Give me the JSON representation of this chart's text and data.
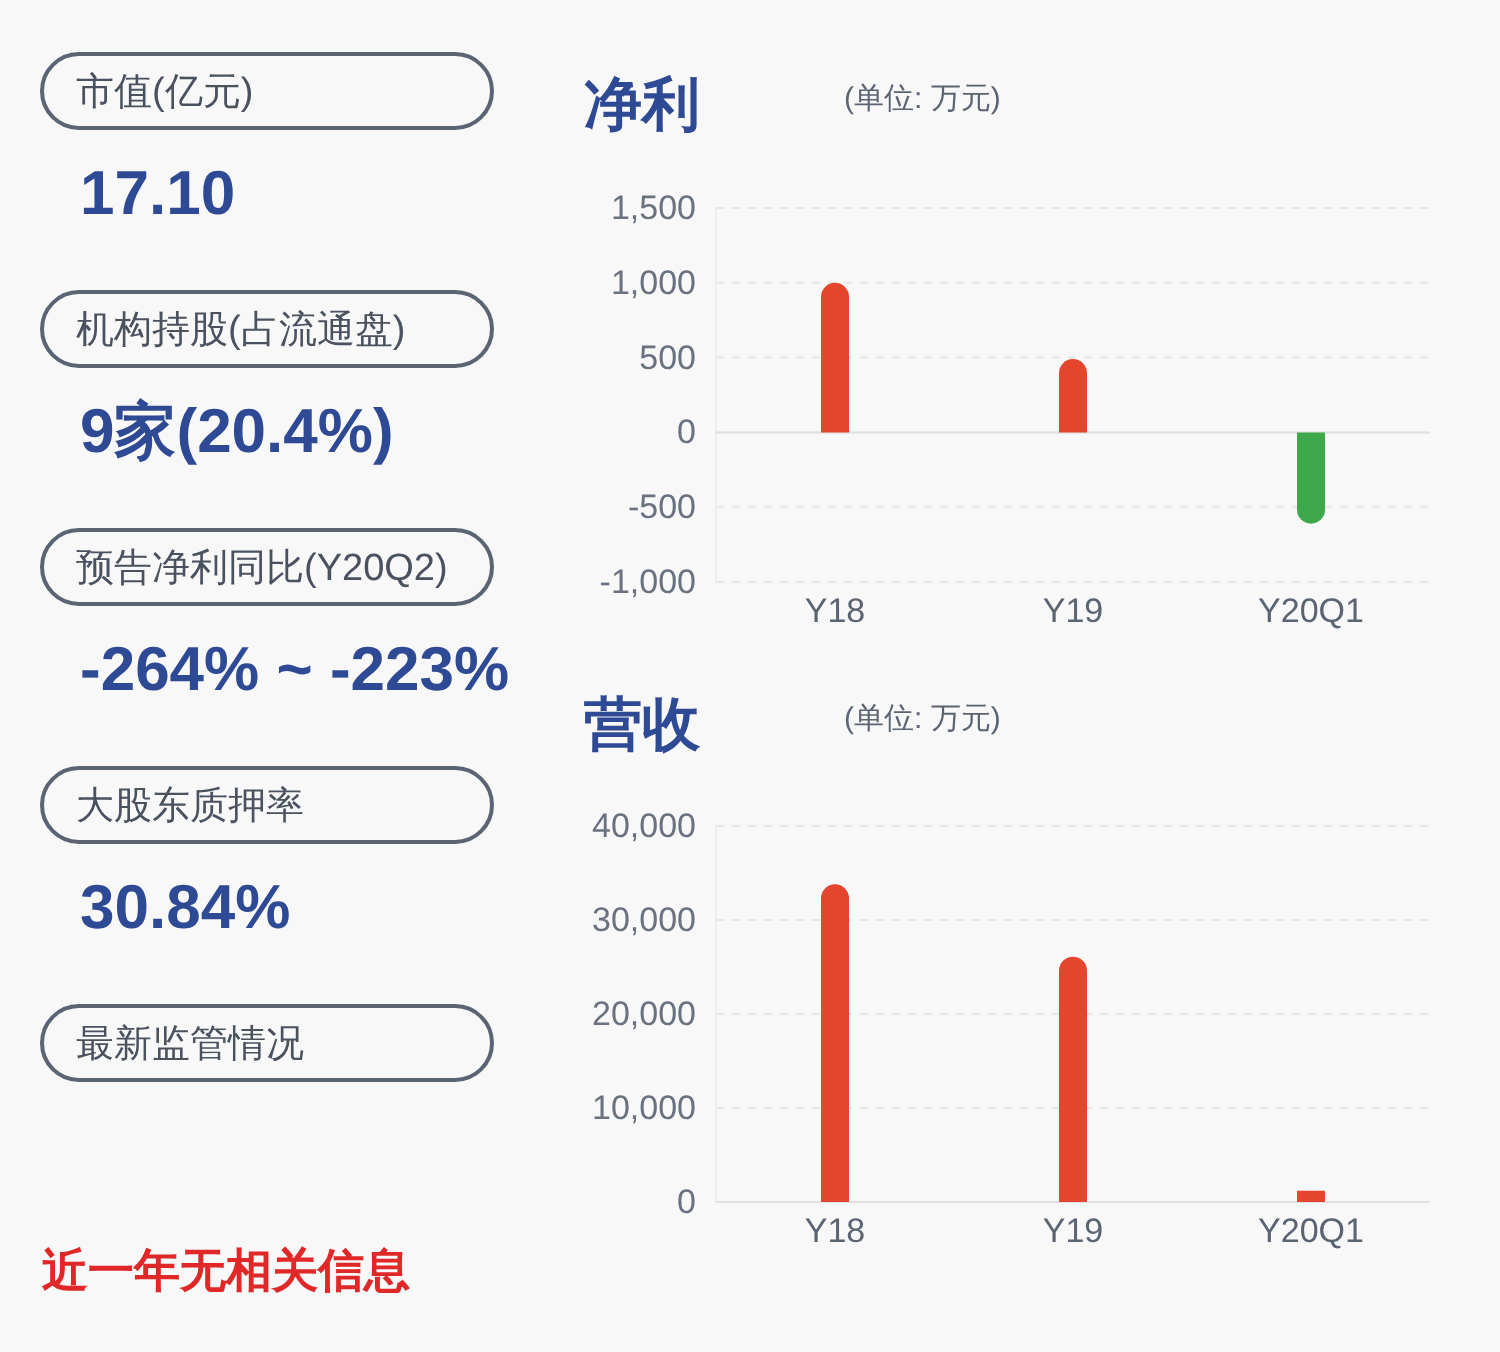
{
  "chart_data": [
    {
      "type": "other",
      "annotations": [
        "市值(亿元)",
        "17.10",
        "机构持股(占流通盘)",
        "9家(20.4%)",
        "预告净利同比(Y20Q2)",
        "-264% ~ -223%",
        "大股东质押率",
        "30.84%",
        "最新监管情况",
        "近一年无相关信息"
      ]
    },
    {
      "type": "bar",
      "title": "净利",
      "subtitle": "(单位: 万元)",
      "categories": [
        "Y18",
        "Y19",
        "Y20Q1"
      ],
      "values": [
        1000,
        490,
        -610
      ],
      "colors": [
        "#e3462c",
        "#e3462c",
        "#3fa84a"
      ],
      "ylim": [
        -1000,
        1500
      ],
      "yticks": [
        {
          "value": -1000,
          "label": "-1,000"
        },
        -500,
        0,
        500,
        {
          "value": 1000,
          "label": "1,000"
        },
        {
          "value": 1500,
          "label": "1,500"
        }
      ],
      "grid": "y"
    },
    {
      "type": "bar",
      "title": "营收",
      "subtitle": "(单位: 万元)",
      "categories": [
        "Y18",
        "Y19",
        "Y20Q1"
      ],
      "values": [
        33800,
        26100,
        1200
      ],
      "colors": [
        "#e3462c",
        "#e3462c",
        "#e3462c"
      ],
      "ylim": [
        0,
        40000
      ],
      "yticks": [
        0,
        {
          "value": 10000,
          "label": "10,000"
        },
        {
          "value": 20000,
          "label": "20,000"
        },
        {
          "value": 30000,
          "label": "30,000"
        },
        {
          "value": 40000,
          "label": "40,000"
        }
      ],
      "grid": "y"
    }
  ]
}
